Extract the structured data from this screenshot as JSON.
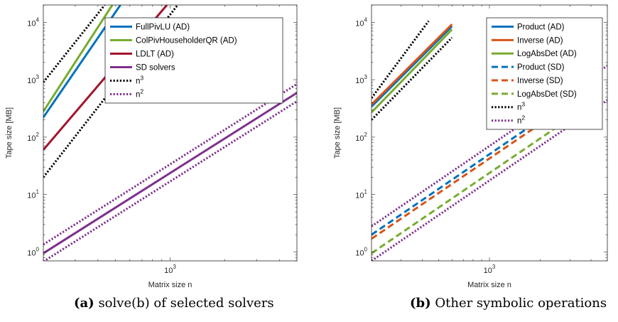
{
  "figure": {
    "captions": [
      {
        "label": "(a)",
        "text": "solve(b) of selected solvers"
      },
      {
        "label": "(b)",
        "text": "Other symbolic operations"
      }
    ]
  },
  "chart_data": [
    {
      "type": "line",
      "title": "",
      "xlabel": "Matrix size n",
      "ylabel": "Tape size [MB]",
      "xscale": "log",
      "yscale": "log",
      "xlim": [
        200,
        5000
      ],
      "ylim": [
        0.7,
        20000
      ],
      "xticks": [
        {
          "value": 1000,
          "base": "10",
          "exp": "3"
        }
      ],
      "yticks": [
        {
          "value": 1,
          "base": "10",
          "exp": "0"
        },
        {
          "value": 10,
          "base": "10",
          "exp": "1"
        },
        {
          "value": 100,
          "base": "10",
          "exp": "2"
        },
        {
          "value": 1000,
          "base": "10",
          "exp": "3"
        },
        {
          "value": 10000,
          "base": "10",
          "exp": "4"
        }
      ],
      "grid": false,
      "legend": "top-right",
      "series": [
        {
          "name": "FullPivLU (AD)",
          "color": "#0072BD",
          "style": "solid",
          "x": [
            200,
            532
          ],
          "y": [
            220,
            20000
          ]
        },
        {
          "name": "ColPivHouseholderQR (AD)",
          "color": "#77AC30",
          "style": "solid",
          "x": [
            200,
            480
          ],
          "y": [
            280,
            20000
          ]
        },
        {
          "name": "LDLT (AD)",
          "color": "#A2142F",
          "style": "solid",
          "x": [
            200,
            960
          ],
          "y": [
            60,
            20000
          ]
        },
        {
          "name": "SD solvers",
          "color": "#7E2F8E",
          "style": "solid",
          "x": [
            200,
            5000
          ],
          "y": [
            0.95,
            590
          ]
        },
        {
          "name": "n³",
          "legend_base": "n",
          "legend_exp": "3",
          "color": "#000000",
          "style": "dotted",
          "x": [
            200,
            436
          ],
          "y": [
            900,
            20000
          ],
          "x2": [
            200,
            1100
          ],
          "y2": [
            20,
            20000
          ]
        },
        {
          "name": "n²",
          "legend_base": "n",
          "legend_exp": "2",
          "color": "#7E2F8E",
          "style": "dotted",
          "x": [
            200,
            5000
          ],
          "y": [
            1.35,
            840
          ],
          "x2": [
            200,
            5000
          ],
          "y2": [
            0.68,
            420
          ]
        }
      ]
    },
    {
      "type": "line",
      "title": "",
      "xlabel": "Matrix size n",
      "ylabel": "Tape size [MB]",
      "xscale": "log",
      "yscale": "log",
      "xlim": [
        200,
        5000
      ],
      "ylim": [
        0.7,
        20000
      ],
      "xticks": [
        {
          "value": 1000,
          "base": "10",
          "exp": "3"
        }
      ],
      "yticks": [
        {
          "value": 1,
          "base": "10",
          "exp": "0"
        },
        {
          "value": 10,
          "base": "10",
          "exp": "1"
        },
        {
          "value": 100,
          "base": "10",
          "exp": "2"
        },
        {
          "value": 1000,
          "base": "10",
          "exp": "3"
        },
        {
          "value": 10000,
          "base": "10",
          "exp": "4"
        }
      ],
      "grid": false,
      "legend": "top-right",
      "series": [
        {
          "name": "Product (AD)",
          "color": "#0072BD",
          "style": "solid",
          "x": [
            200,
            600
          ],
          "y": [
            340,
            8500
          ]
        },
        {
          "name": "Inverse (AD)",
          "color": "#D95319",
          "style": "solid",
          "x": [
            200,
            600
          ],
          "y": [
            370,
            9200
          ]
        },
        {
          "name": "LogAbsDet (AD)",
          "color": "#77AC30",
          "style": "solid",
          "x": [
            200,
            600
          ],
          "y": [
            270,
            7500
          ]
        },
        {
          "name": "Product (SD)",
          "color": "#0072BD",
          "style": "dashed",
          "x": [
            200,
            3500
          ],
          "y": [
            2.0,
            620
          ]
        },
        {
          "name": "Inverse (SD)",
          "color": "#D95319",
          "style": "dashed",
          "x": [
            200,
            3500
          ],
          "y": [
            1.7,
            520
          ]
        },
        {
          "name": "LogAbsDet (SD)",
          "color": "#77AC30",
          "style": "dashed",
          "x": [
            200,
            4000
          ],
          "y": [
            0.95,
            380
          ]
        },
        {
          "name": "n³",
          "legend_base": "n",
          "legend_exp": "3",
          "color": "#000000",
          "style": "dotted",
          "x": [
            200,
            436
          ],
          "y": [
            480,
            10500
          ],
          "x2": [
            200,
            600
          ],
          "y2": [
            200,
            5400
          ]
        },
        {
          "name": "n²",
          "legend_base": "n",
          "legend_exp": "2",
          "color": "#7E2F8E",
          "style": "dotted",
          "x": [
            200,
            5000
          ],
          "y": [
            2.8,
            1750
          ],
          "x2": [
            200,
            5000
          ],
          "y2": [
            0.7,
            440
          ]
        }
      ]
    }
  ]
}
